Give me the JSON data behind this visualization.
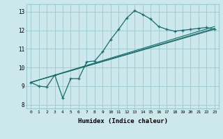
{
  "bg_color": "#cce8ec",
  "grid_color": "#9dc8ce",
  "line_color": "#1a6b6b",
  "xlabel": "Humidex (Indice chaleur)",
  "xlim": [
    -0.5,
    23.5
  ],
  "ylim": [
    7.8,
    13.4
  ],
  "yticks": [
    8,
    9,
    10,
    11,
    12,
    13
  ],
  "xticks": [
    0,
    1,
    2,
    3,
    4,
    5,
    6,
    7,
    8,
    9,
    10,
    11,
    12,
    13,
    14,
    15,
    16,
    17,
    18,
    19,
    20,
    21,
    22,
    23
  ],
  "line1_x": [
    0,
    1,
    2,
    3,
    4,
    5,
    6,
    7,
    8,
    9,
    10,
    11,
    12,
    13,
    14,
    15,
    16,
    17,
    18,
    19,
    20,
    21,
    22,
    23
  ],
  "line1_y": [
    9.2,
    9.0,
    8.95,
    9.6,
    8.35,
    9.4,
    9.4,
    10.3,
    10.35,
    10.85,
    11.5,
    12.05,
    12.65,
    13.05,
    12.85,
    12.6,
    12.2,
    12.05,
    11.95,
    12.0,
    12.05,
    12.1,
    12.15,
    12.05
  ],
  "line2_x": [
    0,
    23
  ],
  "line2_y": [
    9.2,
    12.05
  ],
  "line3_x": [
    0,
    23
  ],
  "line3_y": [
    9.2,
    12.1
  ],
  "line4_x": [
    0,
    23
  ],
  "line4_y": [
    9.2,
    12.2
  ]
}
